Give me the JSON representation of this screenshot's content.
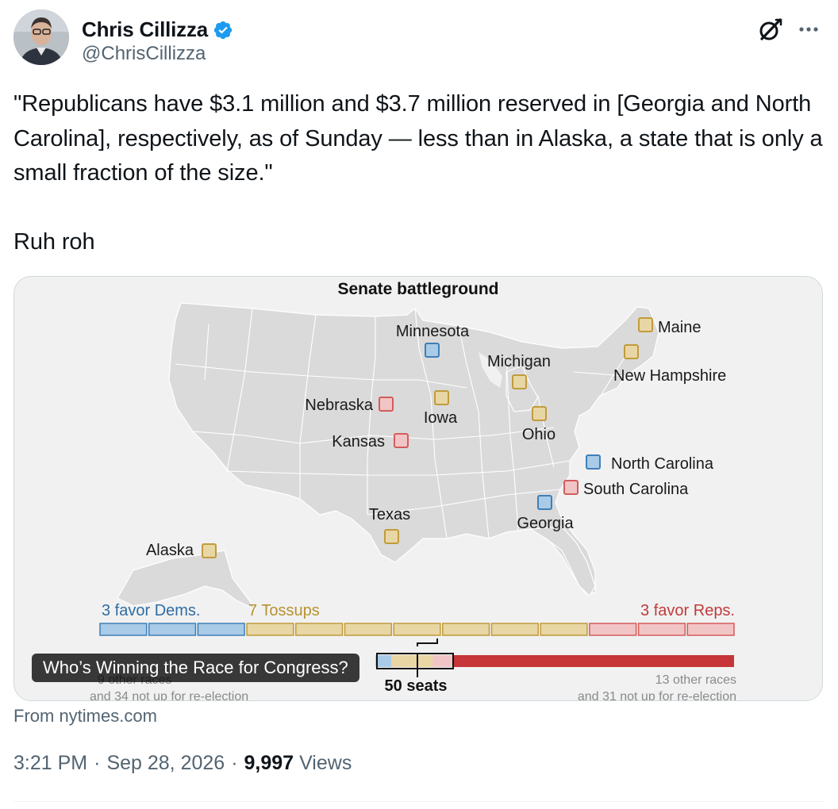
{
  "author": {
    "display_name": "Chris Cillizza",
    "handle": "@ChrisCillizza",
    "verified": true,
    "verified_color": "#1d9bf0"
  },
  "actions": {
    "grok_icon": "grok-icon",
    "more_icon": "more-dots-icon"
  },
  "tweet": {
    "text": "\"Republicans have $3.1 million and $3.7 million reserved in [Georgia and North Carolina], respectively, as of Sunday — less than in Alaska, a state that is only a small fraction of the size.\"\n\nRuh roh"
  },
  "card": {
    "title": "Who’s Winning the Race for Congress?",
    "source": "From nytimes.com",
    "map": {
      "title": "Senate battleground",
      "states": [
        {
          "name": "Minnesota",
          "rating": "dem"
        },
        {
          "name": "Maine",
          "rating": "tossup"
        },
        {
          "name": "Michigan",
          "rating": "tossup"
        },
        {
          "name": "New Hampshire",
          "rating": "tossup"
        },
        {
          "name": "Nebraska",
          "rating": "rep"
        },
        {
          "name": "Iowa",
          "rating": "tossup"
        },
        {
          "name": "Ohio",
          "rating": "tossup"
        },
        {
          "name": "Kansas",
          "rating": "rep"
        },
        {
          "name": "North Carolina",
          "rating": "dem"
        },
        {
          "name": "South Carolina",
          "rating": "rep"
        },
        {
          "name": "Texas",
          "rating": "tossup"
        },
        {
          "name": "Georgia",
          "rating": "dem"
        },
        {
          "name": "Alaska",
          "rating": "tossup"
        }
      ],
      "legend": {
        "dems": "3 favor Dems.",
        "tossups": "7 Tossups",
        "reps": "3 favor Reps."
      },
      "seat_counts": {
        "dem": 3,
        "tossup": 7,
        "rep": 3
      },
      "bar_label": "50 seats",
      "left_note_1": "9 other races",
      "left_note_2": "and 34 not up for re-election",
      "right_note_1": "13 other races",
      "right_note_2": "and 31 not up for re-election",
      "colors": {
        "dem_fill": "#a9cbe8",
        "dem_stroke": "#3f7fb7",
        "tossup_fill": "#e8d6a4",
        "tossup_stroke": "#c19b3c",
        "rep_fill": "#f1c5c5",
        "rep_stroke": "#d55b5b",
        "dem_text": "#2f6da3",
        "tossup_text": "#b8912f",
        "rep_text": "#c13a3a",
        "rep_solid": "#c63538",
        "dem_solid": "#2a4d8c",
        "land": "#dadada",
        "border": "#ffffff"
      }
    }
  },
  "meta": {
    "time": "3:21 PM",
    "date": "Sep 28, 2026",
    "views_count": "9,997",
    "views_label": "Views",
    "separator": "·"
  }
}
